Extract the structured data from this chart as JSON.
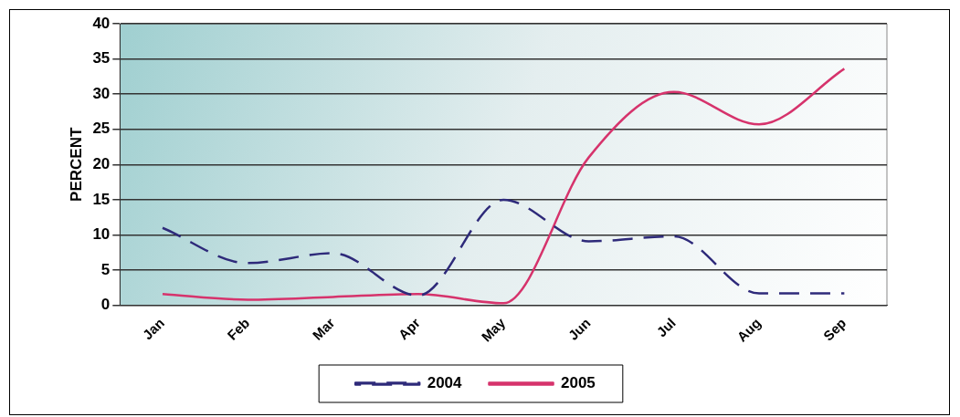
{
  "chart_data": {
    "type": "line",
    "ylabel": "PERCENT",
    "categories": [
      "Jan",
      "Feb",
      "Mar",
      "Apr",
      "May",
      "Jun",
      "Jul",
      "Aug",
      "Sep"
    ],
    "series": [
      {
        "name": "2004",
        "color": "#2e2a7a",
        "line_style": "dashed",
        "values": [
          11,
          6,
          7.4,
          1.4,
          15,
          9.1,
          9.8,
          1.7,
          1.7
        ]
      },
      {
        "name": "2005",
        "color": "#d6336c",
        "line_style": "solid",
        "values": [
          1.6,
          0.8,
          1.2,
          1.6,
          0.3,
          21,
          30.3,
          25.7,
          33.6
        ]
      }
    ],
    "ylim": [
      0,
      40
    ],
    "yticks": [
      0,
      5,
      10,
      15,
      20,
      25,
      30,
      35,
      40
    ],
    "grid": "y",
    "legend": "bottom",
    "marker": "none"
  }
}
